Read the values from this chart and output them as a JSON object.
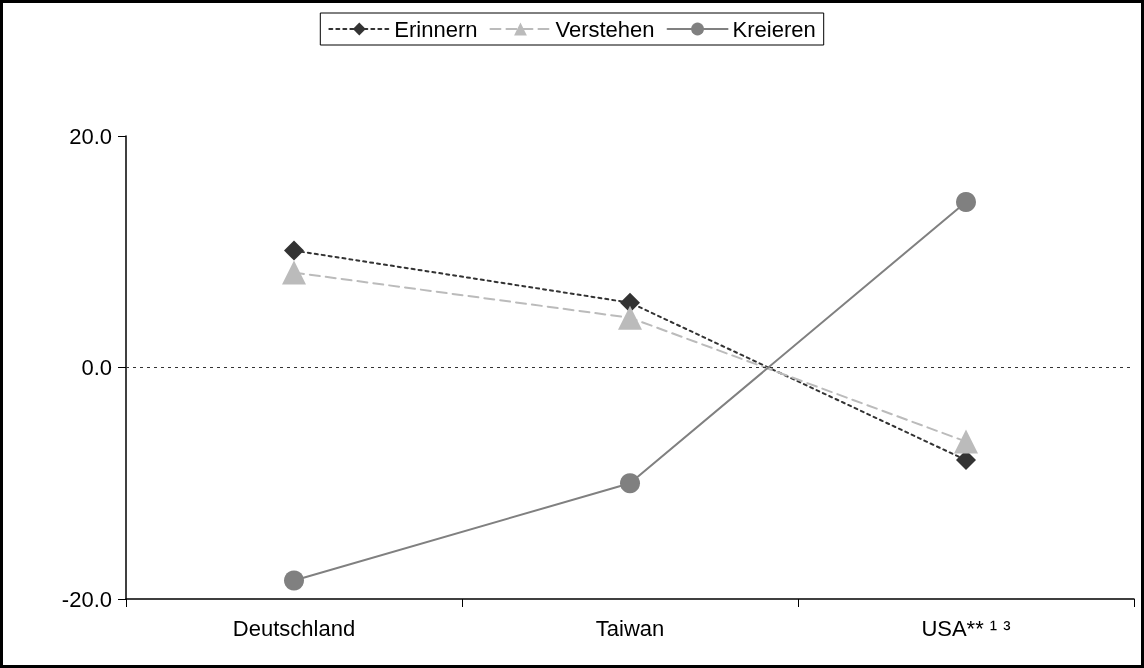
{
  "chart_data": {
    "type": "line",
    "categories": [
      "Deutschland",
      "Taiwan",
      "USA** ¹ ³"
    ],
    "series": [
      {
        "name": "Erinnern",
        "color": "#333333",
        "values": [
          10.1,
          5.6,
          -8.0
        ],
        "marker": "diamond",
        "line_style": "dotted"
      },
      {
        "name": "Verstehen",
        "color": "#bbbbbb",
        "values": [
          8.2,
          4.3,
          -6.4
        ],
        "marker": "triangle",
        "line_style": "dashed"
      },
      {
        "name": "Kreieren",
        "color": "#808080",
        "values": [
          -18.4,
          -10.0,
          14.3
        ],
        "marker": "circle",
        "line_style": "solid"
      }
    ],
    "ylim": [
      -20,
      20
    ],
    "yticks": [
      {
        "value": -20,
        "label": "-20.0"
      },
      {
        "value": 0,
        "label": "0.0"
      },
      {
        "value": 20,
        "label": "20.0"
      }
    ],
    "ref_lines": [
      {
        "axis": "y",
        "value": 0,
        "label": null,
        "color": "#333333",
        "line_style": "dotted"
      }
    ],
    "grid": false,
    "legend": "top"
  }
}
